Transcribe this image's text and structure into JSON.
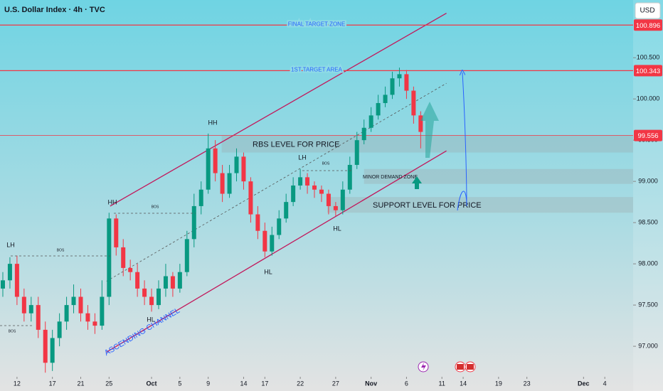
{
  "chart_data": {
    "type": "candlestick",
    "title": "U.S. Dollar Index · 4h · TVC",
    "currency": "USD",
    "xlim": [
      9.6,
      99
    ],
    "ylim": [
      96.63,
      101.2
    ],
    "xticks": [
      12,
      17,
      21,
      25,
      {
        "value": 31,
        "label": "Oct"
      },
      {
        "value": 35,
        "label": "5"
      },
      {
        "value": 39,
        "label": "9"
      },
      {
        "value": 44,
        "label": "14"
      },
      {
        "value": 47,
        "label": "17"
      },
      {
        "value": 52,
        "label": "22"
      },
      {
        "value": 57,
        "label": "27"
      },
      {
        "value": 62,
        "label": "Nov"
      },
      {
        "value": 67,
        "label": "6"
      },
      {
        "value": 72,
        "label": "11"
      },
      {
        "value": 75,
        "label": "14"
      },
      {
        "value": 80,
        "label": "19"
      },
      {
        "value": 84,
        "label": "23"
      },
      {
        "value": 92,
        "label": "Dec"
      },
      {
        "value": 95,
        "label": "4"
      }
    ],
    "yticks": [
      {
        "value": 97,
        "label": "97.000"
      },
      {
        "value": 97.5,
        "label": "97.500"
      },
      {
        "value": 98,
        "label": "98.000"
      },
      {
        "value": 98.5,
        "label": "98.500"
      },
      {
        "value": 99,
        "label": "99.000"
      },
      {
        "value": 99.5,
        "label": "99.500"
      },
      {
        "value": 100,
        "label": "100.000"
      },
      {
        "value": 100.5,
        "label": "100.500"
      }
    ],
    "candles": {
      "x": [
        10,
        11,
        12,
        13,
        14,
        15,
        16,
        17,
        18,
        19,
        20,
        21,
        22,
        23,
        24,
        25,
        26,
        27,
        28,
        29,
        30,
        31,
        32,
        33,
        34,
        35,
        36,
        37,
        38,
        39,
        40,
        41,
        42,
        43,
        44,
        45,
        46,
        47,
        48,
        49,
        50,
        51,
        52,
        53,
        54,
        55,
        56,
        57,
        58,
        59,
        60,
        61,
        62,
        63,
        64,
        65,
        66,
        67,
        68,
        69
      ],
      "open": [
        97.7,
        97.8,
        98.0,
        97.6,
        97.4,
        97.5,
        97.2,
        96.8,
        97.1,
        97.3,
        97.5,
        97.6,
        97.4,
        97.3,
        97.25,
        97.6,
        98.55,
        98.2,
        97.95,
        97.9,
        97.7,
        97.6,
        97.5,
        97.7,
        97.85,
        97.7,
        97.9,
        98.3,
        98.7,
        98.9,
        99.4,
        99.1,
        98.85,
        99.1,
        99.3,
        99.0,
        98.6,
        98.4,
        98.15,
        98.35,
        98.55,
        98.75,
        98.95,
        99.05,
        98.95,
        98.9,
        98.85,
        98.7,
        98.65,
        98.9,
        99.2,
        99.5,
        99.65,
        99.8,
        99.95,
        100.05,
        100.25,
        100.3,
        100.1,
        99.8
      ],
      "high": [
        97.9,
        98.08,
        98.1,
        97.7,
        97.6,
        97.6,
        97.3,
        97.2,
        97.4,
        97.6,
        97.75,
        97.7,
        97.5,
        97.4,
        97.8,
        98.62,
        98.6,
        98.3,
        98.05,
        98.0,
        97.8,
        97.7,
        97.8,
        98.0,
        97.9,
        98.0,
        98.4,
        98.85,
        99.0,
        99.58,
        99.5,
        99.2,
        99.2,
        99.4,
        99.35,
        99.05,
        98.7,
        98.5,
        98.45,
        98.65,
        98.85,
        99.05,
        99.15,
        99.1,
        99.0,
        98.95,
        98.9,
        98.75,
        99.0,
        99.3,
        99.6,
        99.75,
        99.9,
        100.05,
        100.15,
        100.33,
        100.38,
        100.35,
        100.15,
        99.85
      ],
      "low": [
        97.6,
        97.7,
        97.5,
        97.3,
        97.3,
        97.1,
        96.68,
        96.7,
        97.0,
        97.2,
        97.4,
        97.3,
        97.2,
        97.15,
        97.2,
        97.5,
        98.1,
        97.85,
        97.8,
        97.6,
        97.5,
        97.42,
        97.45,
        97.6,
        97.6,
        97.65,
        97.85,
        98.2,
        98.6,
        98.85,
        99.0,
        98.75,
        98.8,
        99.0,
        98.9,
        98.5,
        98.3,
        98.08,
        98.1,
        98.3,
        98.5,
        98.7,
        98.9,
        98.85,
        98.8,
        98.75,
        98.6,
        98.58,
        98.6,
        98.85,
        99.15,
        99.45,
        99.6,
        99.75,
        99.9,
        100.0,
        100.15,
        100.0,
        99.7,
        99.4
      ],
      "close": [
        97.8,
        98.0,
        97.6,
        97.4,
        97.5,
        97.2,
        96.8,
        97.1,
        97.3,
        97.5,
        97.6,
        97.4,
        97.3,
        97.25,
        97.6,
        98.55,
        98.2,
        97.95,
        97.9,
        97.7,
        97.6,
        97.5,
        97.7,
        97.85,
        97.7,
        97.9,
        98.3,
        98.7,
        98.9,
        99.4,
        99.1,
        98.85,
        99.1,
        99.3,
        99.0,
        98.6,
        98.4,
        98.15,
        98.35,
        98.55,
        98.75,
        98.95,
        99.05,
        98.95,
        98.9,
        98.85,
        98.7,
        98.65,
        98.9,
        99.2,
        99.5,
        99.65,
        99.8,
        99.95,
        100.05,
        100.25,
        100.3,
        100.1,
        99.8,
        99.6
      ],
      "up_color": "#089981",
      "down_color": "#f23645"
    },
    "levels": [
      {
        "label": "FINAL TARGET ZONE",
        "value": 100.896,
        "color": "#f23645"
      },
      {
        "label": "1ST TARGET AREA",
        "value": 100.343,
        "color": "#f23645"
      },
      {
        "value": 99.556,
        "color": "#f23645"
      }
    ],
    "zones": [
      {
        "label": "RBS LEVEL FOR PRICE",
        "from": 40.9,
        "low": 99.35,
        "high": 99.56
      },
      {
        "label": "MINOR DEMAND ZONE",
        "from": 61,
        "low": 98.97,
        "high": 99.15
      },
      {
        "label": "SUPPORT LEVEL FOR PRICE",
        "from": 55.8,
        "low": 98.62,
        "high": 98.81
      }
    ],
    "channel": {
      "label": "ASCENDING CHANNEL",
      "upper": {
        "x": [
          25.15,
          72.64
        ],
        "y": [
          98.7,
          101.04
        ]
      },
      "middle": {
        "x": [
          24.65,
          72.64
        ],
        "y": [
          97.79,
          100.19
        ]
      },
      "lower": {
        "x": [
          24.65,
          72.64
        ],
        "y": [
          96.93,
          99.37
        ]
      }
    },
    "annotations": [
      "HH",
      "HH",
      "LH",
      "LH",
      "HL",
      "HL",
      "HL",
      "BOS",
      "BOS",
      "BOS",
      "BOS"
    ]
  }
}
